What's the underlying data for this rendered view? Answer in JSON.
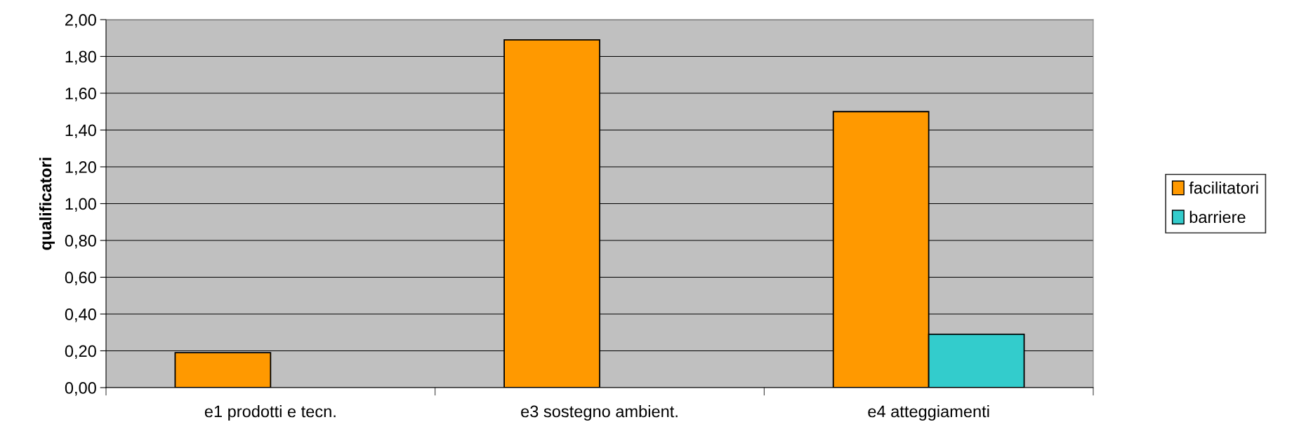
{
  "chart_data": {
    "type": "bar",
    "ylabel": "qualificatori",
    "categories": [
      "e1 prodotti e tecn.",
      "e3 sostegno ambient.",
      "e4 atteggiamenti"
    ],
    "series": [
      {
        "name": "facilitatori",
        "color": "#ff9900",
        "values": [
          0.19,
          1.89,
          1.5
        ]
      },
      {
        "name": "barriere",
        "color": "#33cccc",
        "values": [
          null,
          null,
          0.29
        ]
      }
    ],
    "ylim": [
      0,
      2
    ],
    "yticks": [
      {
        "value": 0,
        "label": "0,00"
      },
      {
        "value": 0.2,
        "label": "0,20"
      },
      {
        "value": 0.4,
        "label": "0,40"
      },
      {
        "value": 0.6,
        "label": "0,60"
      },
      {
        "value": 0.8,
        "label": "0,80"
      },
      {
        "value": 1.0,
        "label": "1,00"
      },
      {
        "value": 1.2,
        "label": "1,20"
      },
      {
        "value": 1.4,
        "label": "1,40"
      },
      {
        "value": 1.6,
        "label": "1,60"
      },
      {
        "value": 1.8,
        "label": "1,80"
      },
      {
        "value": 2.0,
        "label": "2,00"
      }
    ],
    "grid": "y",
    "legend": "right"
  }
}
